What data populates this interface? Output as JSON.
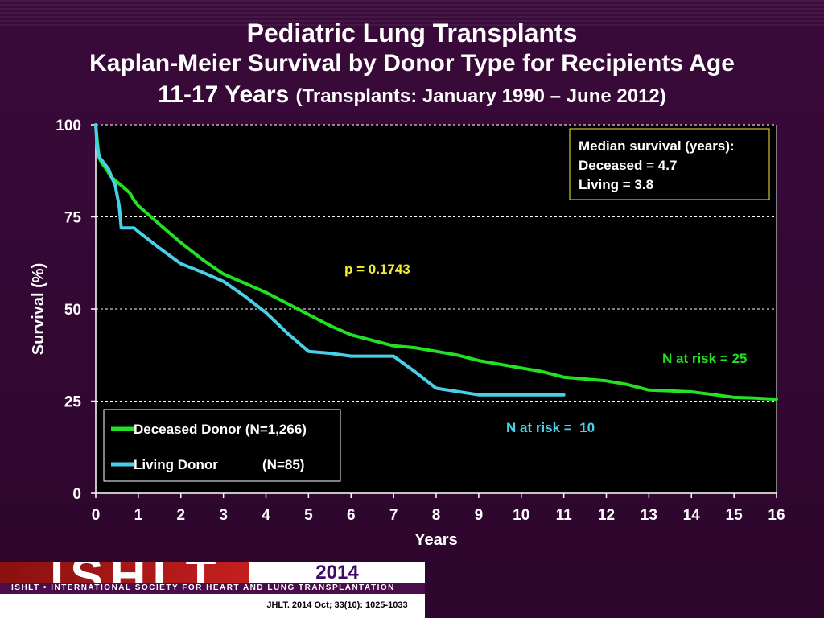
{
  "slide": {
    "title_line1": "Pediatric Lung Transplants",
    "title_line2": "Kaplan-Meier Survival by Donor Type for Recipients Age",
    "title_line3_main": "11-17 Years",
    "title_line3_sub": "(Transplants: January 1990 – June 2012)"
  },
  "footer": {
    "logo_text": "ISHLT",
    "org_name": "ISHLT • INTERNATIONAL SOCIETY FOR HEART AND LUNG TRANSPLANTATION",
    "year": "2014",
    "citation": "JHLT. 2014 Oct; 33(10): 1025-1033"
  },
  "colors": {
    "deceased": "#22e022",
    "living": "#48d0e8",
    "annotation_yellow": "#f2ee30",
    "plot_bg": "#000000",
    "slide_bg": "#2c062c"
  },
  "chart_data": {
    "type": "line",
    "xlabel": "Years",
    "ylabel": "Survival (%)",
    "xlim": [
      0,
      16
    ],
    "ylim": [
      0,
      100
    ],
    "x_ticks": [
      "0",
      "1",
      "2",
      "3",
      "4",
      "5",
      "6",
      "7",
      "8",
      "9",
      "10",
      "11",
      "12",
      "13",
      "14",
      "15",
      "16"
    ],
    "y_ticks": [
      "0",
      "25",
      "50",
      "75",
      "100"
    ],
    "grid": "horizontal dashed",
    "legend_position": "bottom-left",
    "series": [
      {
        "name": "Deceased Donor (N=1,266)",
        "color": "#22e022",
        "x": [
          0,
          0.04,
          0.08,
          0.15,
          0.25,
          0.35,
          0.45,
          0.55,
          0.65,
          0.8,
          0.9,
          1.0,
          1.5,
          2.0,
          2.5,
          3.0,
          3.5,
          4.0,
          4.5,
          5.0,
          5.5,
          6.0,
          6.5,
          7.0,
          7.5,
          8.0,
          8.5,
          9.0,
          9.5,
          10.0,
          10.5,
          11.0,
          11.5,
          12.0,
          12.5,
          13.0,
          13.5,
          14.0,
          14.5,
          15.0,
          15.5,
          16.0
        ],
        "y": [
          100,
          95,
          91,
          89.5,
          88,
          86,
          85,
          84,
          83,
          81.5,
          79.5,
          78,
          73,
          68,
          63.5,
          59.5,
          57,
          54.5,
          51.5,
          48.5,
          45.5,
          43,
          41.5,
          40,
          39.5,
          38.5,
          37.5,
          36,
          35,
          34,
          33,
          31.5,
          31,
          30.5,
          29.5,
          28,
          27.8,
          27.5,
          26.8,
          26,
          25.8,
          25.5
        ]
      },
      {
        "name": "Living Donor (N=85)",
        "color": "#48d0e8",
        "x": [
          0,
          0.04,
          0.1,
          0.2,
          0.3,
          0.4,
          0.45,
          0.55,
          0.6,
          0.9,
          1.0,
          1.5,
          2.0,
          2.5,
          3.0,
          3.5,
          4.0,
          4.5,
          5.0,
          5.5,
          6.0,
          7.0,
          7.5,
          8.0,
          9.0,
          10.0,
          11.0
        ],
        "y": [
          100,
          93,
          91,
          89.5,
          88,
          85,
          84,
          78,
          72,
          72,
          71,
          66.5,
          62.3,
          60,
          57.5,
          53.5,
          49,
          43.5,
          38.5,
          38,
          37.2,
          37.2,
          33,
          28.5,
          26.7,
          26.7,
          26.7
        ]
      }
    ],
    "annotations": {
      "median_title": "Median survival (years):",
      "median_deceased": "Deceased = 4.7",
      "median_living": "Living = 3.8",
      "p_value": "p = 0.1743",
      "n_at_risk_deceased": "N at risk = 25",
      "n_at_risk_living": "N at risk =  10"
    },
    "legend": {
      "deceased_label": "Deceased Donor (N=1,266)",
      "living_label": "Living Donor",
      "living_n": "(N=85)"
    }
  }
}
